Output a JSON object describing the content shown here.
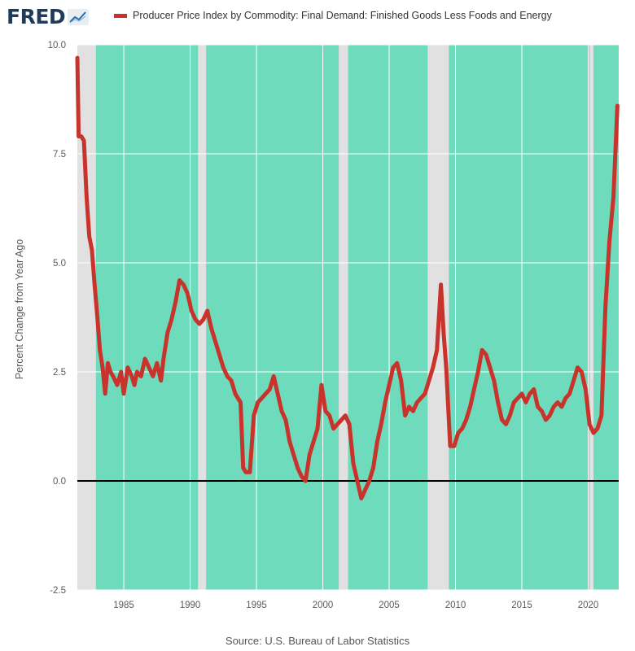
{
  "header": {
    "logo_text": "FRED",
    "logo_icon": "chart-line-icon",
    "legend_label": "Producer Price Index by Commodity: Final Demand: Finished Goods Less Foods and Energy"
  },
  "source": "Source: U.S. Bureau of Labor Statistics",
  "colors": {
    "series": "#c8342c",
    "recession": "#e1e1e1",
    "background": "#6fdbbd",
    "zero_line": "#000000"
  },
  "chart_data": {
    "type": "line",
    "ylabel": "Percent Change from Year Ago",
    "xlim": [
      1981.5,
      2022.3
    ],
    "ylim": [
      -2.5,
      10.0
    ],
    "y_ticks": [
      "-2.5",
      "0.0",
      "2.5",
      "5.0",
      "7.5",
      "10.0"
    ],
    "x_ticks": [
      "1985",
      "1990",
      "1995",
      "2000",
      "2005",
      "2010",
      "2015",
      "2020"
    ],
    "recessions": [
      [
        1981.5,
        1982.9
      ],
      [
        1990.6,
        1991.2
      ],
      [
        2001.2,
        2001.9
      ],
      [
        2007.9,
        2009.5
      ],
      [
        2020.1,
        2020.4
      ]
    ],
    "series": [
      {
        "values_x": [
          1981.5,
          1981.6,
          1981.8,
          1982.0,
          1982.2,
          1982.4,
          1982.6,
          1982.8,
          1983.0,
          1983.2,
          1983.4,
          1983.6,
          1983.8,
          1984.0,
          1984.2,
          1984.5,
          1984.8,
          1985.0,
          1985.3,
          1985.6,
          1985.8,
          1986.0,
          1986.3,
          1986.6,
          1986.9,
          1987.2,
          1987.5,
          1987.8,
          1988.0,
          1988.3,
          1988.6,
          1988.9,
          1989.2,
          1989.5,
          1989.8,
          1990.1,
          1990.4,
          1990.7,
          1991.0,
          1991.3,
          1991.6,
          1991.9,
          1992.2,
          1992.5,
          1992.8,
          1993.1,
          1993.4,
          1993.6,
          1993.8,
          1994.0,
          1994.2,
          1994.5,
          1994.8,
          1995.1,
          1995.4,
          1995.7,
          1996.0,
          1996.3,
          1996.6,
          1996.9,
          1997.2,
          1997.5,
          1997.8,
          1998.1,
          1998.4,
          1998.7,
          1999.0,
          1999.3,
          1999.6,
          1999.9,
          2000.2,
          2000.5,
          2000.8,
          2001.1,
          2001.4,
          2001.7,
          2002.0,
          2002.3,
          2002.6,
          2002.9,
          2003.2,
          2003.5,
          2003.8,
          2004.1,
          2004.4,
          2004.7,
          2005.0,
          2005.3,
          2005.6,
          2005.9,
          2006.2,
          2006.5,
          2006.8,
          2007.1,
          2007.4,
          2007.7,
          2008.0,
          2008.3,
          2008.6,
          2008.9,
          2009.1,
          2009.3,
          2009.6,
          2009.9,
          2010.2,
          2010.5,
          2010.8,
          2011.1,
          2011.4,
          2011.7,
          2012.0,
          2012.3,
          2012.6,
          2012.9,
          2013.2,
          2013.5,
          2013.8,
          2014.1,
          2014.4,
          2014.7,
          2015.0,
          2015.3,
          2015.6,
          2015.9,
          2016.2,
          2016.5,
          2016.8,
          2017.1,
          2017.4,
          2017.7,
          2018.0,
          2018.3,
          2018.6,
          2018.9,
          2019.2,
          2019.5,
          2019.8,
          2020.1,
          2020.4,
          2020.7,
          2021.0,
          2021.3,
          2021.6,
          2021.9,
          2022.2
        ],
        "values_y": [
          9.7,
          7.9,
          7.9,
          7.8,
          6.5,
          5.6,
          5.3,
          4.5,
          3.8,
          3.0,
          2.6,
          2.0,
          2.7,
          2.5,
          2.4,
          2.2,
          2.5,
          2.0,
          2.6,
          2.4,
          2.2,
          2.5,
          2.4,
          2.8,
          2.6,
          2.4,
          2.7,
          2.3,
          2.8,
          3.4,
          3.7,
          4.1,
          4.6,
          4.5,
          4.3,
          3.9,
          3.7,
          3.6,
          3.7,
          3.9,
          3.5,
          3.2,
          2.9,
          2.6,
          2.4,
          2.3,
          2.0,
          1.9,
          1.8,
          0.3,
          0.2,
          0.2,
          1.5,
          1.8,
          1.9,
          2.0,
          2.1,
          2.4,
          2.0,
          1.6,
          1.4,
          0.9,
          0.6,
          0.3,
          0.1,
          0.0,
          0.6,
          0.9,
          1.2,
          2.2,
          1.6,
          1.5,
          1.2,
          1.3,
          1.4,
          1.5,
          1.3,
          0.4,
          0.0,
          -0.4,
          -0.2,
          0.0,
          0.3,
          0.9,
          1.3,
          1.8,
          2.2,
          2.6,
          2.7,
          2.3,
          1.5,
          1.7,
          1.6,
          1.8,
          1.9,
          2.0,
          2.3,
          2.6,
          3.0,
          4.5,
          3.4,
          2.6,
          0.8,
          0.8,
          1.1,
          1.2,
          1.4,
          1.7,
          2.1,
          2.5,
          3.0,
          2.9,
          2.6,
          2.3,
          1.8,
          1.4,
          1.3,
          1.5,
          1.8,
          1.9,
          2.0,
          1.8,
          2.0,
          2.1,
          1.7,
          1.6,
          1.4,
          1.5,
          1.7,
          1.8,
          1.7,
          1.9,
          2.0,
          2.3,
          2.6,
          2.5,
          2.1,
          1.3,
          1.1,
          1.2,
          1.5,
          4.0,
          5.5,
          6.5,
          8.6
        ]
      }
    ]
  }
}
